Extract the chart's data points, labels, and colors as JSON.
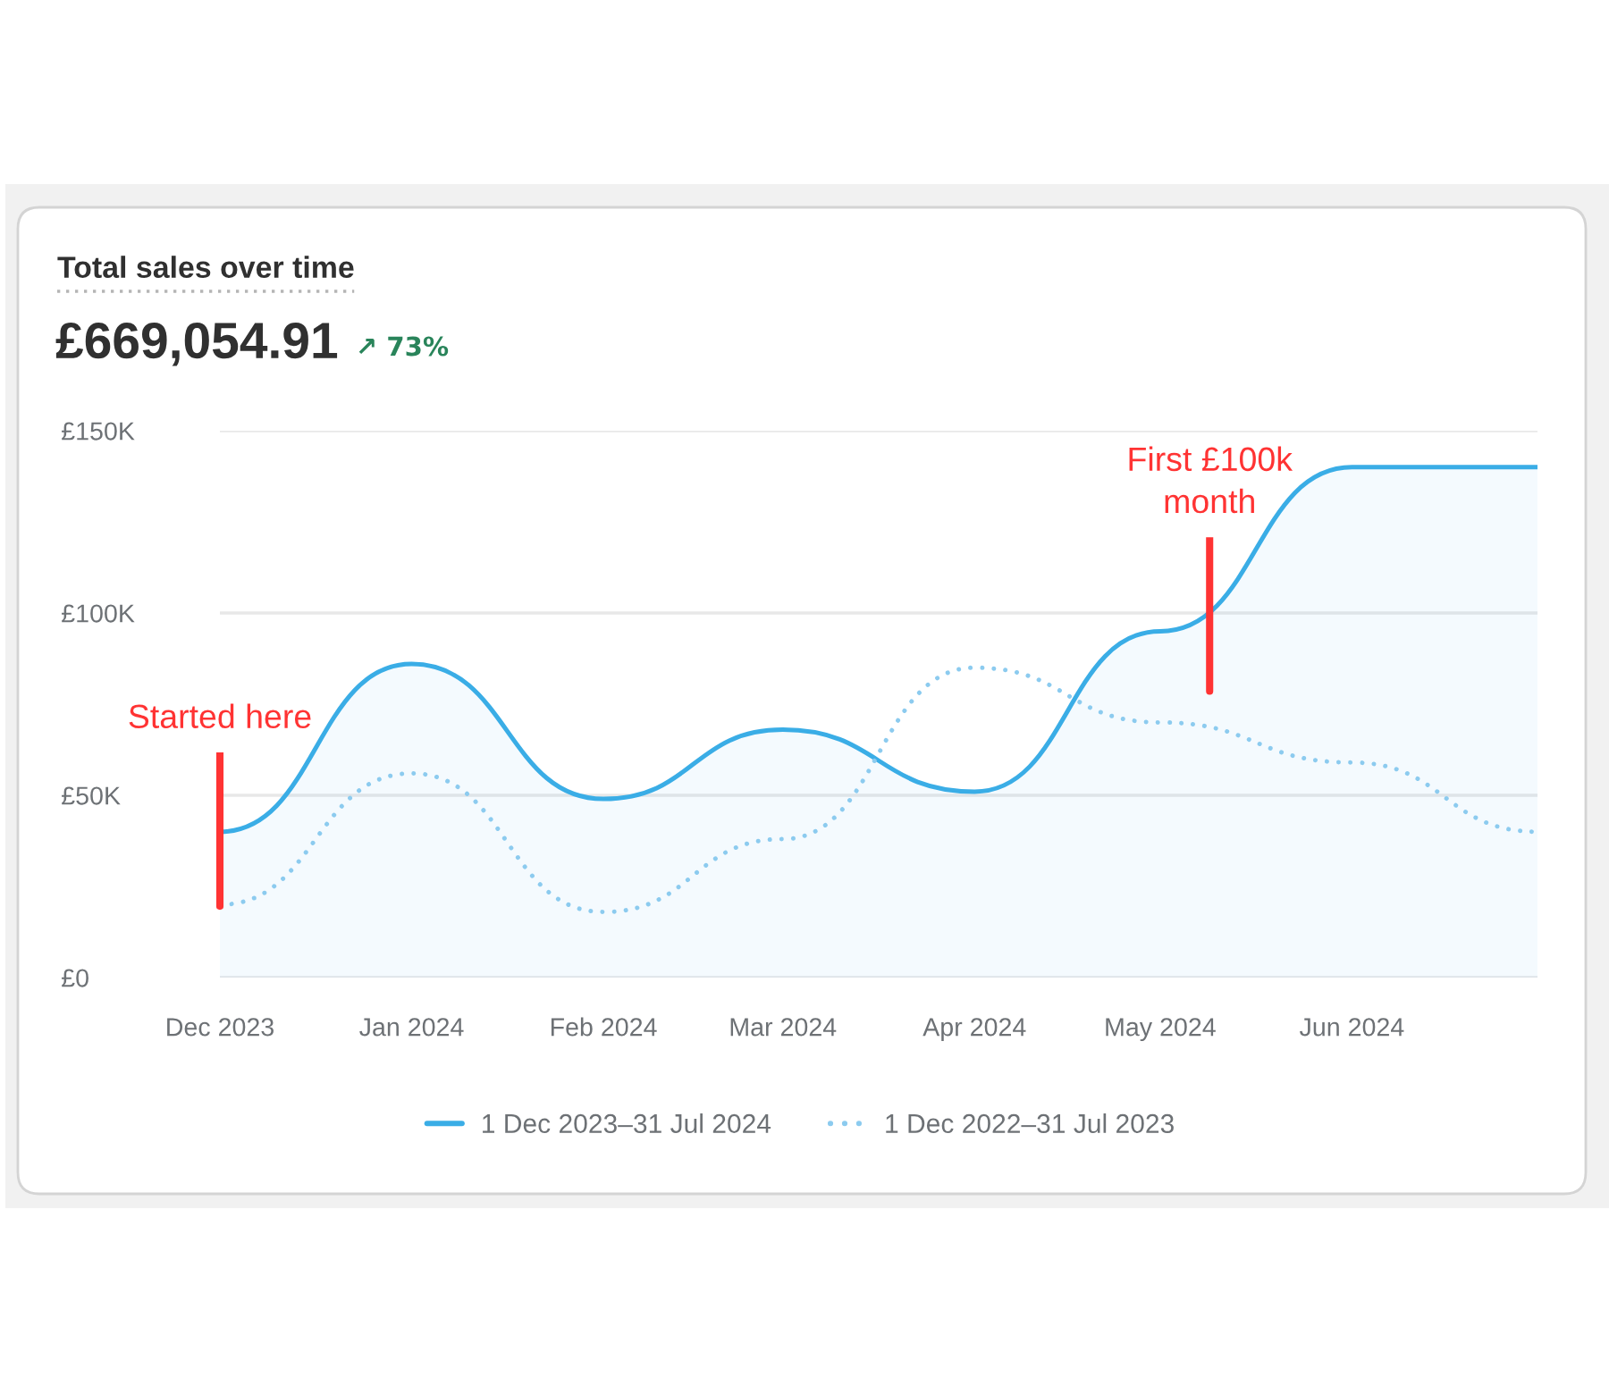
{
  "chart_data": {
    "type": "line",
    "title": "Total sales over time",
    "subtitle": "£669,054.91",
    "x": [
      "2023-12",
      "2024-01",
      "2024-02",
      "2024-03",
      "2024-04",
      "2024-05",
      "2024-06",
      "2024-07"
    ],
    "series": [
      {
        "name": "1 Dec 2023–31 Jul 2024",
        "type": "area",
        "color": "#3aade6",
        "line_style": "solid",
        "values": [
          40,
          86,
          49,
          68,
          51,
          95,
          140,
          140
        ]
      },
      {
        "name": "1 Dec 2022–31 Jul 2023",
        "color": "#8ccbef",
        "line_style": "dotted",
        "values": [
          20,
          56,
          18,
          38,
          85,
          70,
          59,
          40
        ]
      }
    ],
    "xlim": [
      "2023-12",
      "2024-07"
    ],
    "xticks": [
      {
        "value": "2023-12",
        "label": "Dec 2023"
      },
      {
        "value": "2024-01",
        "label": "Jan 2024"
      },
      {
        "value": "2024-02",
        "label": "Feb 2024"
      },
      {
        "value": "2024-03",
        "label": "Mar 2024"
      },
      {
        "value": "2024-04",
        "label": "Apr 2024"
      },
      {
        "value": "2024-05",
        "label": "May 2024"
      },
      {
        "value": "2024-06",
        "label": "Jun 2024"
      }
    ],
    "ylim": [
      0,
      150
    ],
    "yticks": [
      {
        "value": 0,
        "label": "£0"
      },
      {
        "value": 50,
        "label": "£50K"
      },
      {
        "value": 100,
        "label": "£100K"
      },
      {
        "value": 150,
        "label": "£150K"
      }
    ],
    "grid": "y",
    "legend": "bottom",
    "annotations": [
      "↗ 73%",
      {
        "text": "Started here",
        "x": "2023-12",
        "y": 40
      },
      {
        "text": "First £100k\nmonth",
        "x": "2024-05-09",
        "y": 99
      }
    ]
  }
}
